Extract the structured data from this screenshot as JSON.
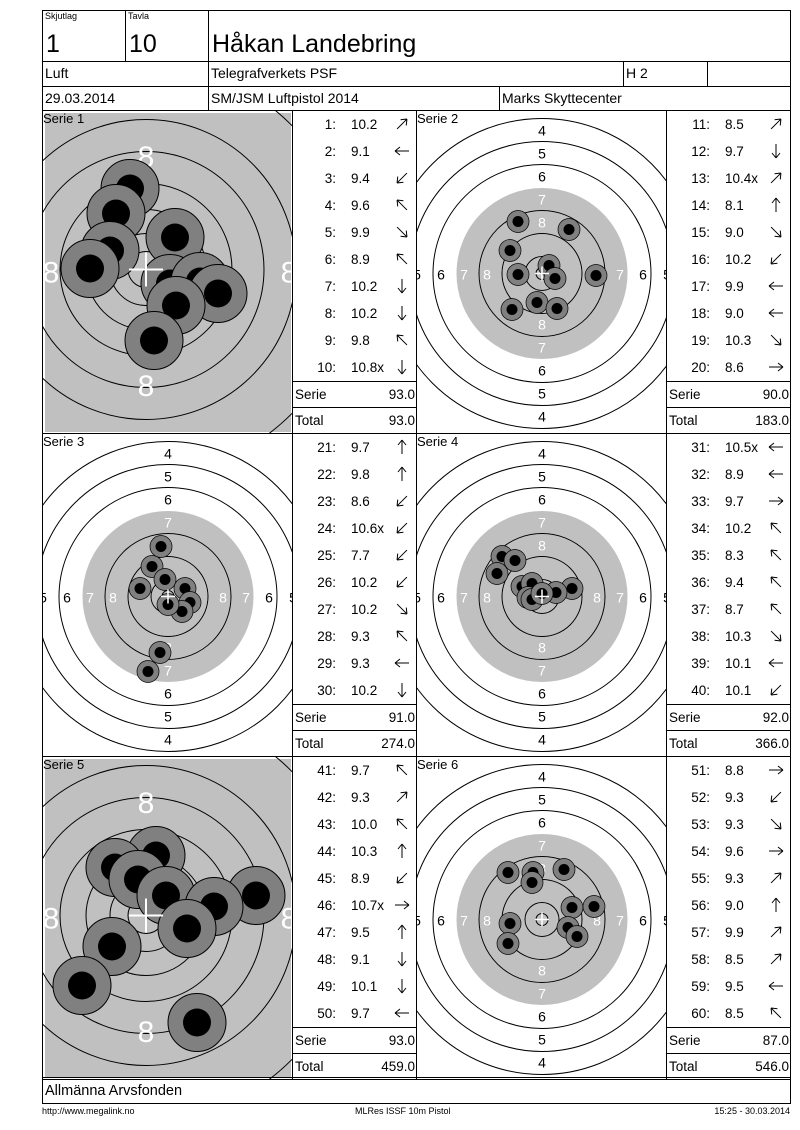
{
  "header": {
    "skjutlag_label": "Skjutlag",
    "skjutlag_value": "1",
    "tavla_label": "Tavla",
    "tavla_value": "10",
    "shooter_name": "Håkan Landebring",
    "category": "Luft",
    "club": "Telegrafverkets PSF",
    "class": "H 2",
    "date": "29.03.2014",
    "competition": "SM/JSM Luftpistol 2014",
    "venue": "Marks Skyttecenter"
  },
  "labels": {
    "serie": "Serie",
    "total": "Total"
  },
  "series": [
    {
      "title": "Serie 1",
      "view": "zoom",
      "serie_sum": "93.0",
      "total": "93.0",
      "shots": [
        {
          "n": "1:",
          "v": "10.2",
          "dir": "ne"
        },
        {
          "n": "2:",
          "v": "9.1",
          "dir": "w"
        },
        {
          "n": "3:",
          "v": "9.4",
          "dir": "sw"
        },
        {
          "n": "4:",
          "v": "9.6",
          "dir": "nw"
        },
        {
          "n": "5:",
          "v": "9.9",
          "dir": "se"
        },
        {
          "n": "6:",
          "v": "8.9",
          "dir": "nw"
        },
        {
          "n": "7:",
          "v": "10.2",
          "dir": "s"
        },
        {
          "n": "8:",
          "v": "10.2",
          "dir": "s"
        },
        {
          "n": "9:",
          "v": "9.8",
          "dir": "nw"
        },
        {
          "n": "10:",
          "v": "10.8x",
          "dir": "s"
        }
      ]
    },
    {
      "title": "Serie 2",
      "view": "full",
      "serie_sum": "90.0",
      "total": "183.0",
      "shots": [
        {
          "n": "11:",
          "v": "8.5",
          "dir": "ne"
        },
        {
          "n": "12:",
          "v": "9.7",
          "dir": "s"
        },
        {
          "n": "13:",
          "v": "10.4x",
          "dir": "ne"
        },
        {
          "n": "14:",
          "v": "8.1",
          "dir": "n"
        },
        {
          "n": "15:",
          "v": "9.0",
          "dir": "se"
        },
        {
          "n": "16:",
          "v": "10.2",
          "dir": "sw"
        },
        {
          "n": "17:",
          "v": "9.9",
          "dir": "w"
        },
        {
          "n": "18:",
          "v": "9.0",
          "dir": "w"
        },
        {
          "n": "19:",
          "v": "10.3",
          "dir": "se"
        },
        {
          "n": "20:",
          "v": "8.6",
          "dir": "e"
        }
      ]
    },
    {
      "title": "Serie 3",
      "view": "full",
      "serie_sum": "91.0",
      "total": "274.0",
      "shots": [
        {
          "n": "21:",
          "v": "9.7",
          "dir": "n"
        },
        {
          "n": "22:",
          "v": "9.8",
          "dir": "n"
        },
        {
          "n": "23:",
          "v": "8.6",
          "dir": "sw"
        },
        {
          "n": "24:",
          "v": "10.6x",
          "dir": "sw"
        },
        {
          "n": "25:",
          "v": "7.7",
          "dir": "sw"
        },
        {
          "n": "26:",
          "v": "10.2",
          "dir": "sw"
        },
        {
          "n": "27:",
          "v": "10.2",
          "dir": "se"
        },
        {
          "n": "28:",
          "v": "9.3",
          "dir": "nw"
        },
        {
          "n": "29:",
          "v": "9.3",
          "dir": "w"
        },
        {
          "n": "30:",
          "v": "10.2",
          "dir": "s"
        }
      ]
    },
    {
      "title": "Serie 4",
      "view": "full",
      "serie_sum": "92.0",
      "total": "366.0",
      "shots": [
        {
          "n": "31:",
          "v": "10.5x",
          "dir": "w"
        },
        {
          "n": "32:",
          "v": "8.9",
          "dir": "w"
        },
        {
          "n": "33:",
          "v": "9.7",
          "dir": "e"
        },
        {
          "n": "34:",
          "v": "10.2",
          "dir": "nw"
        },
        {
          "n": "35:",
          "v": "8.3",
          "dir": "nw"
        },
        {
          "n": "36:",
          "v": "9.4",
          "dir": "nw"
        },
        {
          "n": "37:",
          "v": "8.7",
          "dir": "nw"
        },
        {
          "n": "38:",
          "v": "10.3",
          "dir": "se"
        },
        {
          "n": "39:",
          "v": "10.1",
          "dir": "w"
        },
        {
          "n": "40:",
          "v": "10.1",
          "dir": "sw"
        }
      ]
    },
    {
      "title": "Serie 5",
      "view": "zoom",
      "serie_sum": "93.0",
      "total": "459.0",
      "shots": [
        {
          "n": "41:",
          "v": "9.7",
          "dir": "nw"
        },
        {
          "n": "42:",
          "v": "9.3",
          "dir": "ne"
        },
        {
          "n": "43:",
          "v": "10.0",
          "dir": "nw"
        },
        {
          "n": "44:",
          "v": "10.3",
          "dir": "n"
        },
        {
          "n": "45:",
          "v": "8.9",
          "dir": "sw"
        },
        {
          "n": "46:",
          "v": "10.7x",
          "dir": "e"
        },
        {
          "n": "47:",
          "v": "9.5",
          "dir": "n"
        },
        {
          "n": "48:",
          "v": "9.1",
          "dir": "s"
        },
        {
          "n": "49:",
          "v": "10.1",
          "dir": "s"
        },
        {
          "n": "50:",
          "v": "9.7",
          "dir": "w"
        }
      ]
    },
    {
      "title": "Serie 6",
      "view": "full",
      "serie_sum": "87.0",
      "total": "546.0",
      "shots": [
        {
          "n": "51:",
          "v": "8.8",
          "dir": "e"
        },
        {
          "n": "52:",
          "v": "9.3",
          "dir": "sw"
        },
        {
          "n": "53:",
          "v": "9.3",
          "dir": "se"
        },
        {
          "n": "54:",
          "v": "9.6",
          "dir": "e"
        },
        {
          "n": "55:",
          "v": "9.3",
          "dir": "ne"
        },
        {
          "n": "56:",
          "v": "9.0",
          "dir": "n"
        },
        {
          "n": "57:",
          "v": "9.9",
          "dir": "ne"
        },
        {
          "n": "58:",
          "v": "8.5",
          "dir": "ne"
        },
        {
          "n": "59:",
          "v": "9.5",
          "dir": "w"
        },
        {
          "n": "60:",
          "v": "8.5",
          "dir": "nw"
        }
      ]
    }
  ],
  "target_ring_labels": {
    "full": [
      "4",
      "5",
      "6",
      "7",
      "8"
    ],
    "side_full": [
      "5",
      "6",
      "7",
      "8"
    ],
    "zoom": [
      "8"
    ]
  },
  "sponsor": "Allmänna Arvsfonden",
  "footer": {
    "url": "http://www.megalink.no",
    "program": "MLRes ISSF 10m Pistol",
    "timestamp": "15:25 - 30.03.2014"
  },
  "colors": {
    "target_gray": "#c0c0c0",
    "hole_ring": "#808080",
    "hole_center": "#000000"
  }
}
